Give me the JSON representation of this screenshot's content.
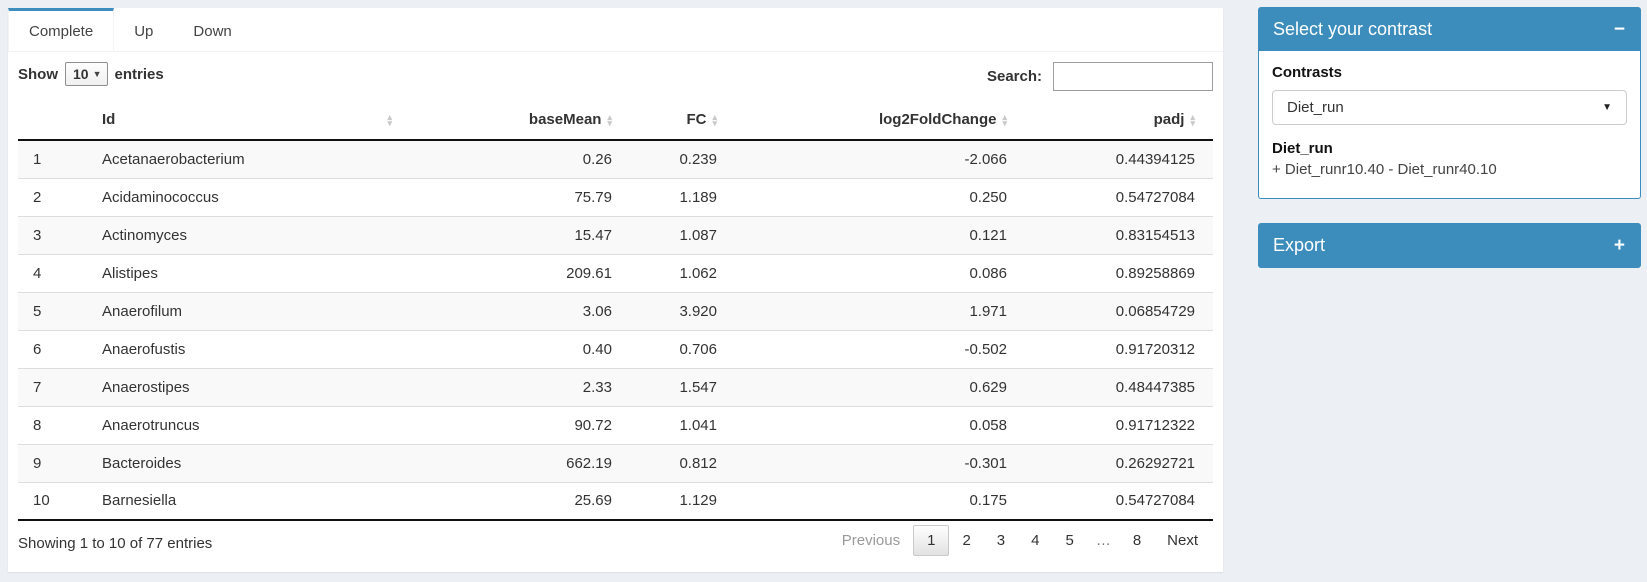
{
  "tabs": [
    {
      "label": "Complete",
      "active": true
    },
    {
      "label": "Up",
      "active": false
    },
    {
      "label": "Down",
      "active": false
    }
  ],
  "length_control": {
    "prefix": "Show",
    "selected": "10",
    "suffix": "entries"
  },
  "search": {
    "label": "Search:",
    "value": ""
  },
  "table": {
    "columns": [
      {
        "label": ""
      },
      {
        "label": "Id"
      },
      {
        "label": "baseMean"
      },
      {
        "label": "FC"
      },
      {
        "label": "log2FoldChange"
      },
      {
        "label": "padj"
      }
    ],
    "rows": [
      {
        "num": "1",
        "id": "Acetanaerobacterium",
        "baseMean": "0.26",
        "fc": "0.239",
        "log2fc": "-2.066",
        "padj": "0.44394125"
      },
      {
        "num": "2",
        "id": "Acidaminococcus",
        "baseMean": "75.79",
        "fc": "1.189",
        "log2fc": "0.250",
        "padj": "0.54727084"
      },
      {
        "num": "3",
        "id": "Actinomyces",
        "baseMean": "15.47",
        "fc": "1.087",
        "log2fc": "0.121",
        "padj": "0.83154513"
      },
      {
        "num": "4",
        "id": "Alistipes",
        "baseMean": "209.61",
        "fc": "1.062",
        "log2fc": "0.086",
        "padj": "0.89258869"
      },
      {
        "num": "5",
        "id": "Anaerofilum",
        "baseMean": "3.06",
        "fc": "3.920",
        "log2fc": "1.971",
        "padj": "0.06854729"
      },
      {
        "num": "6",
        "id": "Anaerofustis",
        "baseMean": "0.40",
        "fc": "0.706",
        "log2fc": "-0.502",
        "padj": "0.91720312"
      },
      {
        "num": "7",
        "id": "Anaerostipes",
        "baseMean": "2.33",
        "fc": "1.547",
        "log2fc": "0.629",
        "padj": "0.48447385"
      },
      {
        "num": "8",
        "id": "Anaerotruncus",
        "baseMean": "90.72",
        "fc": "1.041",
        "log2fc": "0.058",
        "padj": "0.91712322"
      },
      {
        "num": "9",
        "id": "Bacteroides",
        "baseMean": "662.19",
        "fc": "0.812",
        "log2fc": "-0.301",
        "padj": "0.26292721"
      },
      {
        "num": "10",
        "id": "Barnesiella",
        "baseMean": "25.69",
        "fc": "1.129",
        "log2fc": "0.175",
        "padj": "0.54727084"
      }
    ],
    "info": "Showing 1 to 10 of 77 entries",
    "pagination": {
      "previous": "Previous",
      "pages": [
        "1",
        "2",
        "3",
        "4",
        "5",
        "…",
        "8"
      ],
      "current": "1",
      "next": "Next"
    }
  },
  "contrast_box": {
    "title": "Select your contrast",
    "collapse_icon": "−",
    "label": "Contrasts",
    "selected": "Diet_run",
    "detail_title": "Diet_run",
    "detail_formula": "+ Diet_runr10.40 - Diet_runr40.10"
  },
  "export_box": {
    "title": "Export",
    "collapse_icon": "+"
  },
  "colors": {
    "primary": "#3c8dbc",
    "page_bg": "#ecf0f5"
  }
}
